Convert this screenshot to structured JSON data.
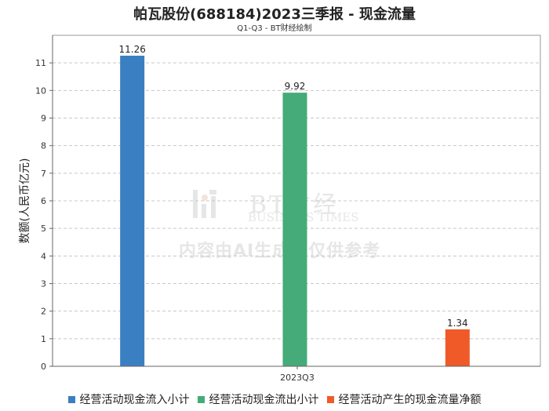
{
  "title": "帕瓦股份(688184)2023三季报 - 现金流量",
  "subtitle": "Q1-Q3 - BT财经绘制",
  "watermark": {
    "brand": "BT财经",
    "brand_sub": "BUSINESS TIMES",
    "notice": "内容由AI生成，仅供参考"
  },
  "chart_data": {
    "type": "bar",
    "categories": [
      "2023Q3"
    ],
    "series": [
      {
        "name": "经营活动现金流入小计",
        "values": [
          11.26
        ],
        "color": "#3a7fc1"
      },
      {
        "name": "经营活动现金流出小计",
        "values": [
          9.92
        ],
        "color": "#45ab78"
      },
      {
        "name": "经营活动产生的现金流量净额",
        "values": [
          1.34
        ],
        "color": "#ef5a28"
      }
    ],
    "ylabel": "数额(人民币亿元)",
    "xlabel": "",
    "ylim": [
      0,
      12
    ],
    "yticks": [
      0,
      1,
      2,
      3,
      4,
      5,
      6,
      7,
      8,
      9,
      10,
      11
    ],
    "grid": true,
    "legend_position": "bottom"
  }
}
